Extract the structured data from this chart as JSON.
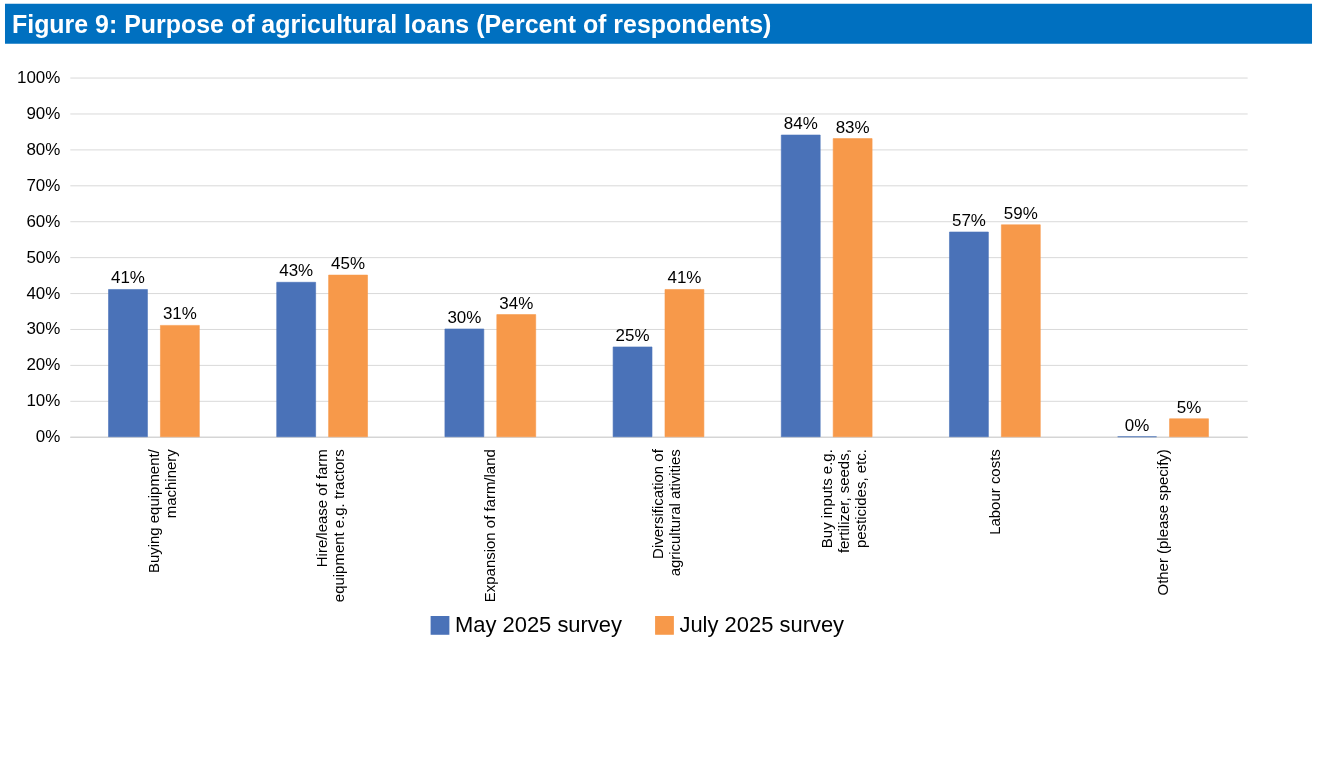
{
  "chart_data": {
    "type": "bar",
    "title": "Figure 9: Purpose of agricultural loans (Percent of respondents)",
    "categories": [
      "Buying equipment/ machinery",
      "Hire/lease of farm equipment e.g. tractors",
      "Expansion of farm/land",
      "Diversification of agricultural ativities",
      "Buy inputs e.g. fertilizer, seeds, pesticides, etc.",
      "Labour costs",
      "Other (please specify)"
    ],
    "series": [
      {
        "name": "May 2025 survey",
        "color": "#4a72b8",
        "values": [
          41,
          43,
          30,
          25,
          84,
          57,
          0
        ],
        "value_labels": [
          "41%",
          "43%",
          "30%",
          "25%",
          "84%",
          "57%",
          "0%"
        ]
      },
      {
        "name": "July 2025 survey",
        "color": "#f7994a",
        "values": [
          31,
          45,
          34,
          41,
          83,
          59,
          5
        ],
        "value_labels": [
          "31%",
          "45%",
          "34%",
          "41%",
          "83%",
          "59%",
          "5%"
        ]
      }
    ],
    "ylim": [
      0,
      100
    ],
    "yticks": [
      {
        "value": 0,
        "label": "0%"
      },
      {
        "value": 10,
        "label": "10%"
      },
      {
        "value": 20,
        "label": "20%"
      },
      {
        "value": 30,
        "label": "30%"
      },
      {
        "value": 40,
        "label": "40%"
      },
      {
        "value": 50,
        "label": "50%"
      },
      {
        "value": 60,
        "label": "60%"
      },
      {
        "value": 70,
        "label": "70%"
      },
      {
        "value": 80,
        "label": "80%"
      },
      {
        "value": 90,
        "label": "90%"
      },
      {
        "value": 100,
        "label": "100%"
      }
    ],
    "grid": "y",
    "legend": "bottom"
  }
}
